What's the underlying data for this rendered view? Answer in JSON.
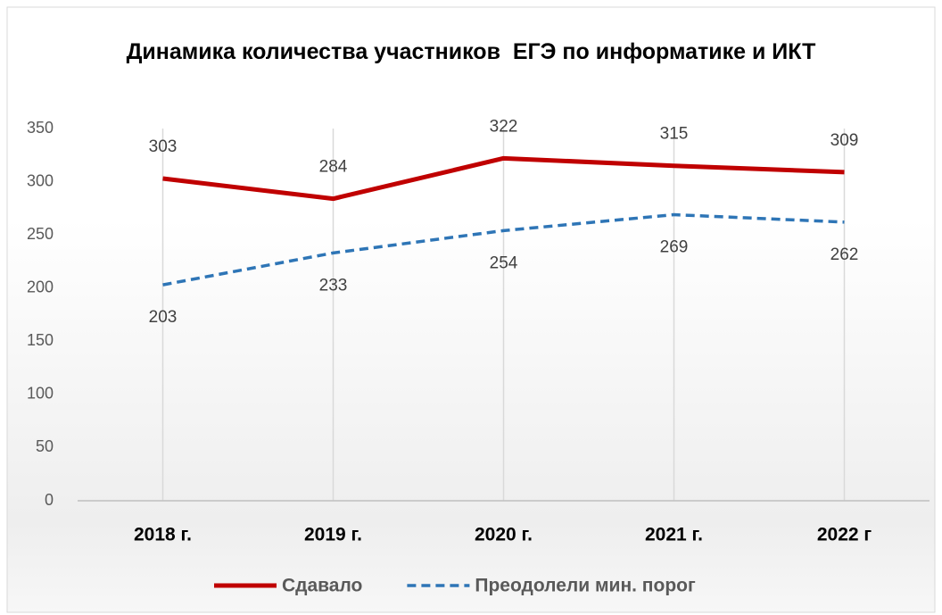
{
  "chart_data": {
    "type": "line",
    "title": "Динамика количества участников  ЕГЭ по информатике и ИКТ",
    "categories": [
      "2018 г.",
      "2019 г.",
      "2020 г.",
      "2021 г.",
      "2022 г"
    ],
    "series": [
      {
        "name": "Сдавало",
        "color": "#c00000",
        "dash": false,
        "label_position": "above",
        "values": [
          303,
          284,
          322,
          315,
          309
        ]
      },
      {
        "name": "Преодолели мин. порог",
        "color": "#2e75b6",
        "dash": true,
        "label_position": "below",
        "values": [
          203,
          233,
          254,
          269,
          262
        ]
      }
    ],
    "ylim": [
      0,
      350
    ],
    "yticks": [
      0,
      50,
      100,
      150,
      200,
      250,
      300,
      350
    ],
    "grid": "vertical",
    "legend": "bottom"
  }
}
